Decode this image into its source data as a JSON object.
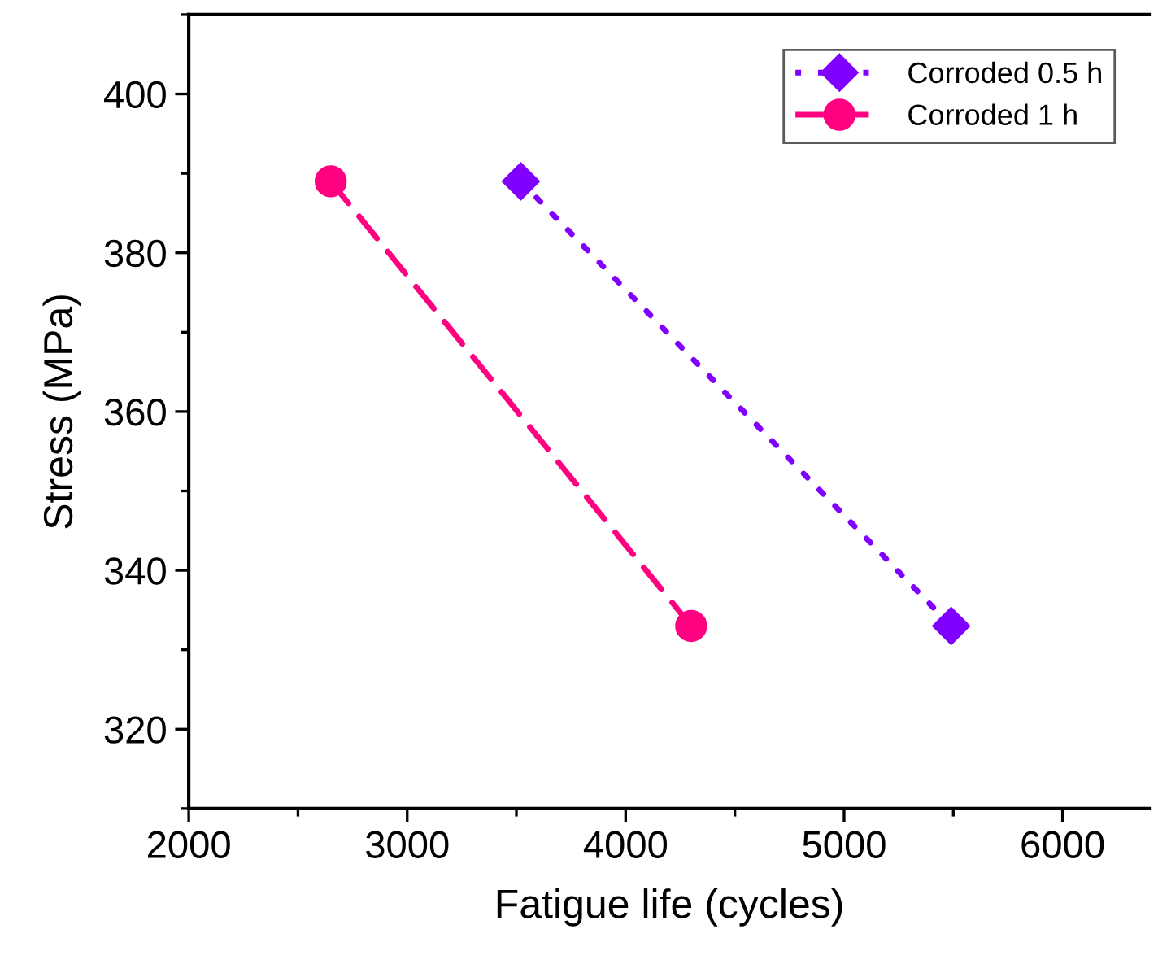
{
  "chart_data": {
    "type": "line",
    "xlabel": "Fatigue life (cycles)",
    "ylabel": "Stress (MPa)",
    "xlim": [
      2000,
      6400
    ],
    "xticks": [
      2000,
      3000,
      4000,
      5000,
      6000
    ],
    "ylim": [
      310,
      410
    ],
    "yticks": [
      320,
      340,
      360,
      380,
      400
    ],
    "grid": false,
    "legend": "top right",
    "series": [
      {
        "name": "Corroded 0.5 h",
        "color": "#8000ff",
        "x": [
          3520,
          5490
        ],
        "values": [
          389,
          333
        ],
        "marker": "diamond",
        "line_style": "dotted"
      },
      {
        "name": "Corroded 1 h",
        "color": "#ff0080",
        "x": [
          2650,
          4300
        ],
        "values": [
          389,
          333
        ],
        "marker": "circle",
        "line_style": "dashed"
      }
    ]
  }
}
